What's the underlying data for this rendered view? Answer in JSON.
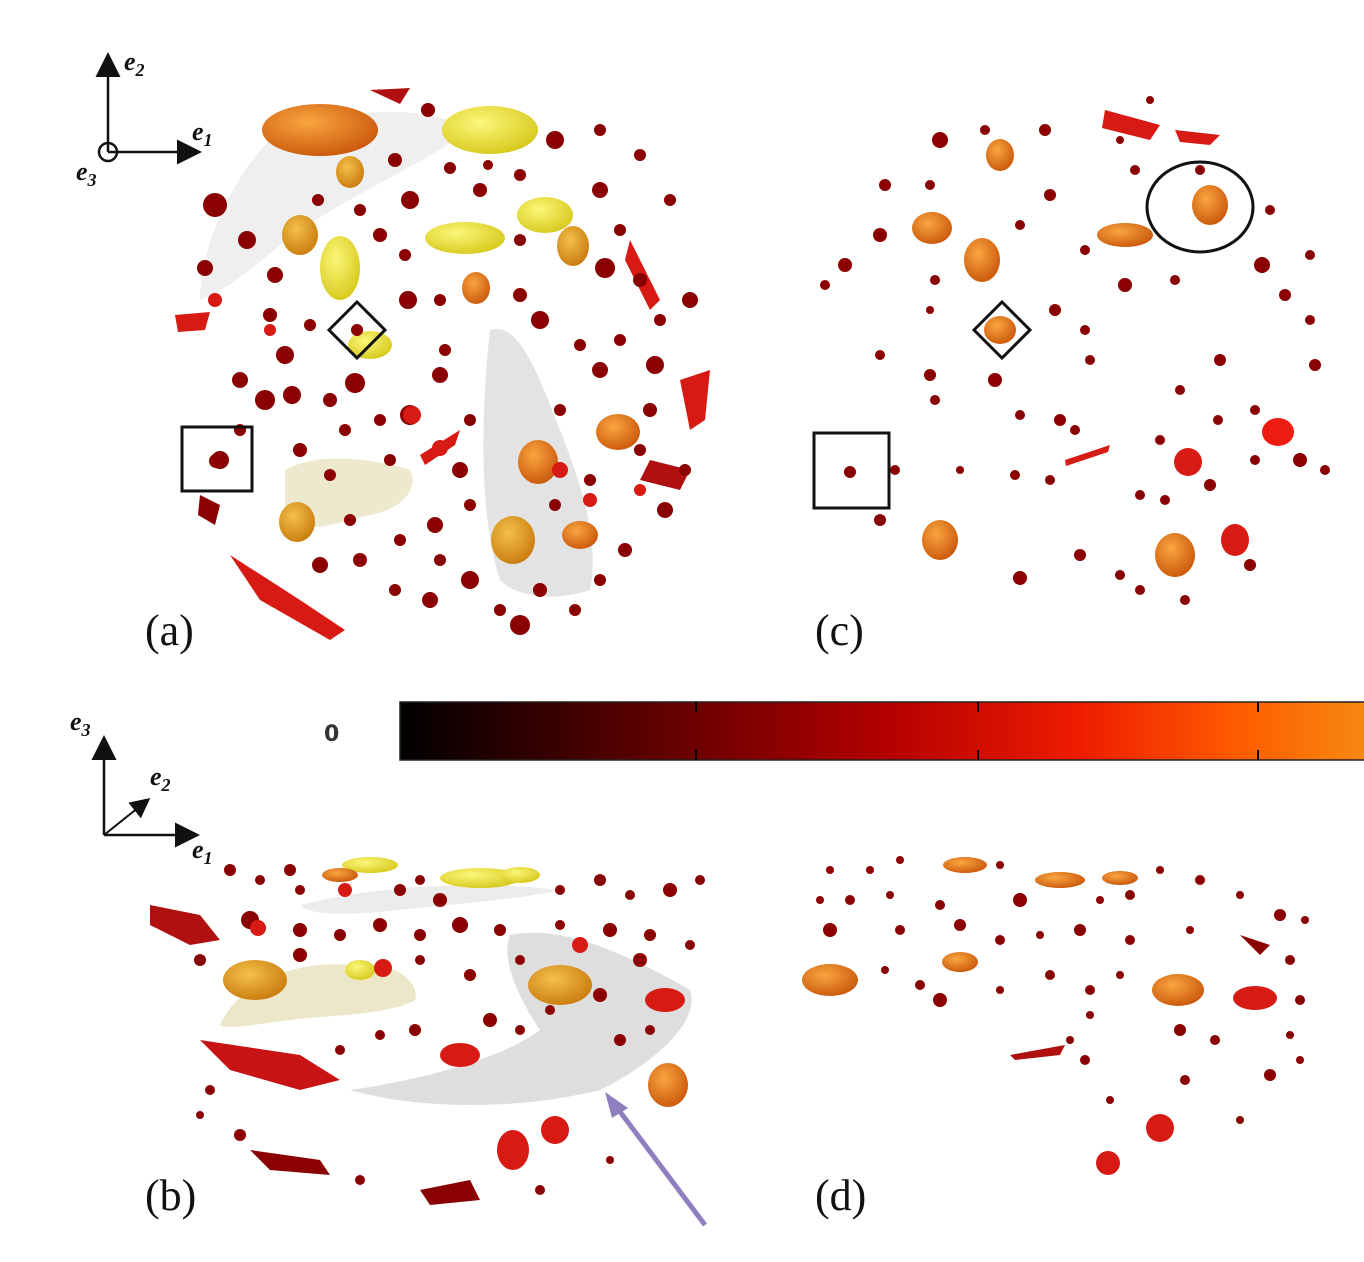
{
  "panels": {
    "a": {
      "label": "(a)"
    },
    "b": {
      "label": "(b)"
    },
    "c": {
      "label": "(c)"
    },
    "d": {
      "label": "(d)"
    }
  },
  "axes_top": {
    "e1": "e",
    "e1_sub": "1",
    "e2": "e",
    "e2_sub": "2",
    "e3": "e",
    "e3_sub": "3"
  },
  "axes_bottom": {
    "e1": "e",
    "e1_sub": "1",
    "e2": "e",
    "e2_sub": "2",
    "e3": "e",
    "e3_sub": "3"
  },
  "colorbar": {
    "min_label": "0",
    "stops": [
      "#000000",
      "#5a0000",
      "#b30000",
      "#ee1c00",
      "#ff5a00",
      "#f58a10"
    ]
  },
  "colors": {
    "dark_red": "#8b0000",
    "red": "#d71a14",
    "orange": "#f07a18",
    "amber": "#e89a20",
    "yellow": "#f2ee2c",
    "grey_surface": "#e4e4e4",
    "arrow": "#8f7fbf"
  }
}
